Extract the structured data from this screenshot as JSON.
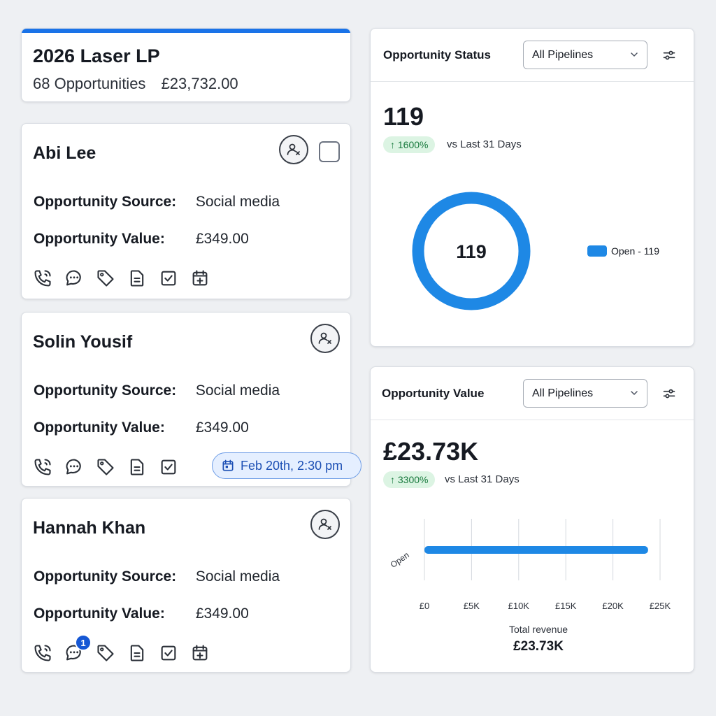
{
  "pipeline": {
    "title": "2026 Laser LP",
    "count_label": "68 Opportunities",
    "total_value": "£23,732.00"
  },
  "opportunities": [
    {
      "name": "Abi Lee",
      "source_label": "Opportunity Source:",
      "source": "Social media",
      "value_label": "Opportunity Value:",
      "value": "£349.00",
      "has_checkbox": true
    },
    {
      "name": "Solin Yousif",
      "source_label": "Opportunity Source:",
      "source": "Social media",
      "value_label": "Opportunity Value:",
      "value": "£349.00",
      "appointment": "Feb 20th, 2:30 pm"
    },
    {
      "name": "Hannah Khan",
      "source_label": "Opportunity Source:",
      "source": "Social media",
      "value_label": "Opportunity Value:",
      "value": "£349.00",
      "unread_messages": "1"
    }
  ],
  "status_widget": {
    "title": "Opportunity Status",
    "pipeline_select": "All Pipelines",
    "total": "119",
    "trend": "↑ 1600%",
    "trend_label": "vs Last 31 Days",
    "donut_center": "119",
    "legend": "Open - 119"
  },
  "value_widget": {
    "title": "Opportunity Value",
    "pipeline_select": "All Pipelines",
    "total": "£23.73K",
    "trend": "↑ 3300%",
    "trend_label": "vs Last 31 Days",
    "total_label": "Total revenue",
    "total_value": "£23.73K"
  },
  "chart_data": [
    {
      "type": "pie",
      "categories": [
        "Open"
      ],
      "values": [
        119
      ],
      "center_label": "119",
      "legend": "right"
    },
    {
      "type": "bar",
      "orientation": "horizontal",
      "categories": [
        "Open"
      ],
      "values": [
        23730
      ],
      "xlim": [
        0,
        25000
      ],
      "xticks": [
        "£0",
        "£5K",
        "£10K",
        "£15K",
        "£20K",
        "£25K"
      ],
      "grid": true
    }
  ],
  "colors": {
    "accent": "#1a73e8",
    "chart_blue": "#1e88e5",
    "trend_green": "#197a3e",
    "badge_blue": "#1557d4"
  }
}
